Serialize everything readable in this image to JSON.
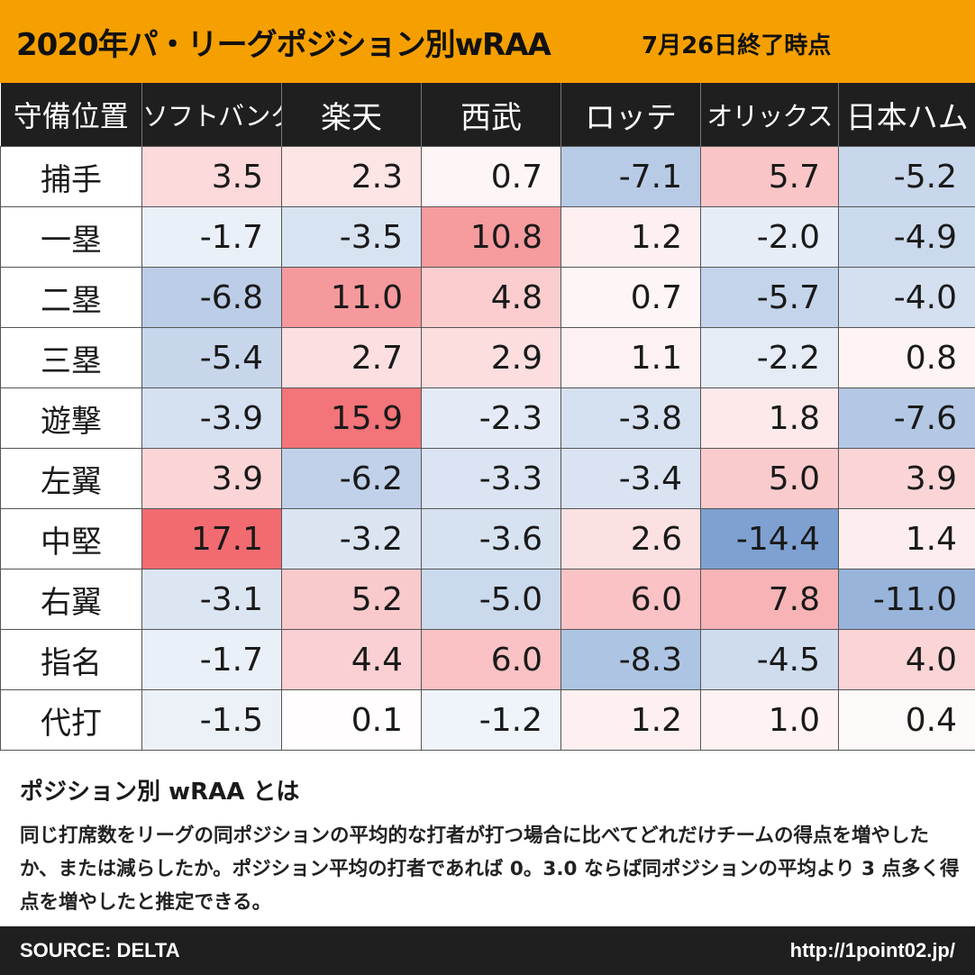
{
  "header": {
    "title": "2020年パ・リーグポジション別wRAA",
    "subtitle": "7月26日終了時点"
  },
  "colors": {
    "title_bg": "#f5a000",
    "header_bg": "#1f1f1f",
    "positive_max": "#f26b70",
    "negative_max": "#7ea1d2",
    "neutral": "#ffffff"
  },
  "chart_data": {
    "type": "table",
    "title": "2020年パ・リーグポジション別wRAA",
    "corner_label": "守備位置",
    "columns": [
      "ソフトバンク",
      "楽天",
      "西武",
      "ロッテ",
      "オリックス",
      "日本ハム"
    ],
    "rows": [
      {
        "label": "捕手",
        "values": [
          "3.5",
          "2.3",
          "0.7",
          "-7.1",
          "5.7",
          "-5.2"
        ]
      },
      {
        "label": "一塁",
        "values": [
          "-1.7",
          "-3.5",
          "10.8",
          "1.2",
          "-2.0",
          "-4.9"
        ]
      },
      {
        "label": "二塁",
        "values": [
          "-6.8",
          "11.0",
          "4.8",
          "0.7",
          "-5.7",
          "-4.0"
        ]
      },
      {
        "label": "三塁",
        "values": [
          "-5.4",
          "2.7",
          "2.9",
          "1.1",
          "-2.2",
          "0.8"
        ]
      },
      {
        "label": "遊撃",
        "values": [
          "-3.9",
          "15.9",
          "-2.3",
          "-3.8",
          "1.8",
          "-7.6"
        ]
      },
      {
        "label": "左翼",
        "values": [
          "3.9",
          "-6.2",
          "-3.3",
          "-3.4",
          "5.0",
          "3.9"
        ]
      },
      {
        "label": "中堅",
        "values": [
          "17.1",
          "-3.2",
          "-3.6",
          "2.6",
          "-14.4",
          "1.4"
        ]
      },
      {
        "label": "右翼",
        "values": [
          "-3.1",
          "5.2",
          "-5.0",
          "6.0",
          "7.8",
          "-11.0"
        ]
      },
      {
        "label": "指名",
        "values": [
          "-1.7",
          "4.4",
          "6.0",
          "-8.3",
          "-4.5",
          "4.0"
        ]
      },
      {
        "label": "代打",
        "values": [
          "-1.5",
          "0.1",
          "-1.2",
          "1.2",
          "1.0",
          "0.4"
        ]
      }
    ],
    "color_scale": {
      "min": -14.4,
      "max": 17.1
    }
  },
  "explanation": {
    "title": "ポジション別 wRAA とは",
    "body": "同じ打席数をリーグの同ポジションの平均的な打者が打つ場合に比べてどれだけチームの得点を増やしたか、または減らしたか。ポジション平均の打者であれば 0。3.0 ならば同ポジションの平均より 3 点多く得点を増やしたと推定できる。"
  },
  "footer": {
    "source": "SOURCE: DELTA",
    "url": "http://1point02.jp/"
  }
}
